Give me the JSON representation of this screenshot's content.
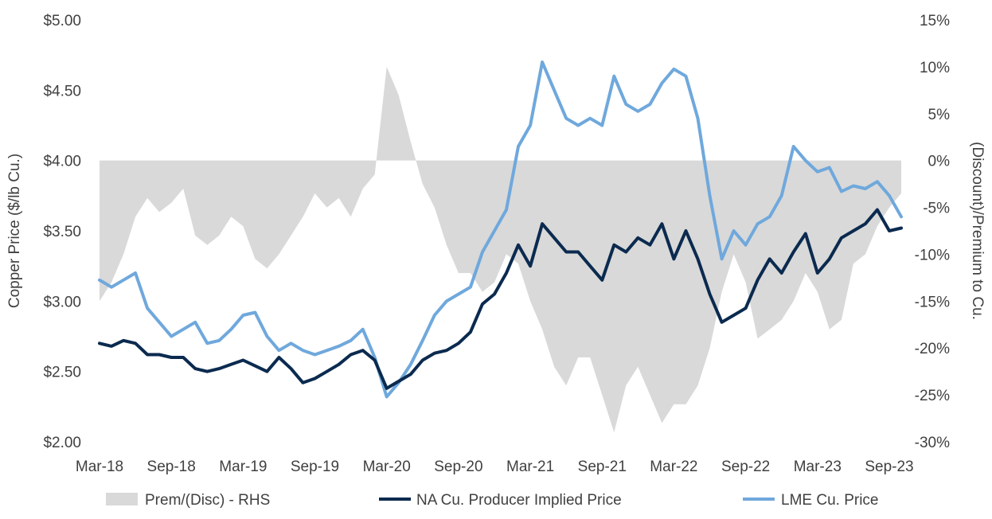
{
  "chart_data": {
    "type": "line",
    "title": "",
    "ylabel": "Copper Price ($/lb Cu.)",
    "y2label": "(Discount)/Premium to Cu.",
    "ylim": [
      2.0,
      5.0
    ],
    "y2lim": [
      -30,
      15
    ],
    "x_ticks": [
      "Mar-18",
      "Sep-18",
      "Mar-19",
      "Sep-19",
      "Mar-20",
      "Sep-20",
      "Mar-21",
      "Sep-21",
      "Mar-22",
      "Sep-22",
      "Mar-23",
      "Sep-23"
    ],
    "y_ticks": [
      "$2.00",
      "$2.50",
      "$3.00",
      "$3.50",
      "$4.00",
      "$4.50",
      "$5.00"
    ],
    "y2_ticks": [
      "-30%",
      "-25%",
      "-20%",
      "-15%",
      "-10%",
      "-5%",
      "0%",
      "5%",
      "10%",
      "15%"
    ],
    "legend_position": "bottom",
    "colors": {
      "premium": "#d9d9d9",
      "na": "#0b2a4f",
      "lme": "#6fa8dc"
    },
    "x": [
      "2018-03",
      "2018-04",
      "2018-05",
      "2018-06",
      "2018-07",
      "2018-08",
      "2018-09",
      "2018-10",
      "2018-11",
      "2018-12",
      "2019-01",
      "2019-02",
      "2019-03",
      "2019-04",
      "2019-05",
      "2019-06",
      "2019-07",
      "2019-08",
      "2019-09",
      "2019-10",
      "2019-11",
      "2019-12",
      "2020-01",
      "2020-02",
      "2020-03",
      "2020-04",
      "2020-05",
      "2020-06",
      "2020-07",
      "2020-08",
      "2020-09",
      "2020-10",
      "2020-11",
      "2020-12",
      "2021-01",
      "2021-02",
      "2021-03",
      "2021-04",
      "2021-05",
      "2021-06",
      "2021-07",
      "2021-08",
      "2021-09",
      "2021-10",
      "2021-11",
      "2021-12",
      "2022-01",
      "2022-02",
      "2022-03",
      "2022-04",
      "2022-05",
      "2022-06",
      "2022-07",
      "2022-08",
      "2022-09",
      "2022-10",
      "2022-11",
      "2022-12",
      "2023-01",
      "2023-02",
      "2023-03",
      "2023-04",
      "2023-05",
      "2023-06",
      "2023-07",
      "2023-08",
      "2023-09",
      "2023-10"
    ],
    "series": [
      {
        "name": "Prem/(Disc) - RHS",
        "axis": "right",
        "style": "area",
        "values": [
          -15.0,
          -13.0,
          -10.0,
          -6.0,
          -4.0,
          -5.5,
          -4.5,
          -3.0,
          -8.0,
          -9.0,
          -8.0,
          -6.0,
          -7.0,
          -10.5,
          -11.5,
          -10.0,
          -8.0,
          -6.0,
          -3.5,
          -5.0,
          -4.0,
          -6.0,
          -3.0,
          -1.5,
          10.0,
          7.0,
          2.0,
          -2.5,
          -5.0,
          -9.0,
          -12.0,
          -12.0,
          -14.0,
          -13.0,
          -10.0,
          -11.0,
          -15.0,
          -18.0,
          -22.0,
          -24.0,
          -21.0,
          -21.0,
          -25.0,
          -29.0,
          -24.0,
          -22.0,
          -25.0,
          -28.0,
          -26.0,
          -26.0,
          -24.0,
          -20.0,
          -14.0,
          -10.0,
          -13.0,
          -19.0,
          -18.0,
          -17.0,
          -15.0,
          -12.0,
          -14.0,
          -18.0,
          -17.0,
          -11.0,
          -10.0,
          -7.0,
          -5.0,
          -3.5
        ]
      },
      {
        "name": "NA Cu. Producer Implied Price",
        "axis": "left",
        "style": "line",
        "values": [
          2.7,
          2.68,
          2.72,
          2.7,
          2.62,
          2.62,
          2.6,
          2.6,
          2.52,
          2.5,
          2.52,
          2.55,
          2.58,
          2.54,
          2.5,
          2.6,
          2.52,
          2.42,
          2.45,
          2.5,
          2.55,
          2.62,
          2.65,
          2.58,
          2.38,
          2.43,
          2.48,
          2.58,
          2.63,
          2.65,
          2.7,
          2.78,
          2.98,
          3.05,
          3.2,
          3.4,
          3.25,
          3.55,
          3.45,
          3.35,
          3.35,
          3.25,
          3.15,
          3.4,
          3.35,
          3.45,
          3.4,
          3.55,
          3.3,
          3.5,
          3.3,
          3.05,
          2.85,
          2.9,
          2.95,
          3.15,
          3.3,
          3.2,
          3.35,
          3.48,
          3.2,
          3.3,
          3.45,
          3.5,
          3.55,
          3.65,
          3.5,
          3.52
        ]
      },
      {
        "name": "LME Cu. Price",
        "axis": "left",
        "style": "line",
        "values": [
          3.15,
          3.1,
          3.15,
          3.2,
          2.95,
          2.85,
          2.75,
          2.8,
          2.85,
          2.7,
          2.72,
          2.8,
          2.9,
          2.92,
          2.75,
          2.65,
          2.7,
          2.65,
          2.62,
          2.65,
          2.68,
          2.72,
          2.8,
          2.6,
          2.32,
          2.42,
          2.55,
          2.72,
          2.9,
          3.0,
          3.05,
          3.1,
          3.35,
          3.5,
          3.65,
          4.1,
          4.25,
          4.7,
          4.5,
          4.3,
          4.25,
          4.3,
          4.25,
          4.6,
          4.4,
          4.35,
          4.4,
          4.55,
          4.65,
          4.6,
          4.3,
          3.75,
          3.3,
          3.5,
          3.4,
          3.55,
          3.6,
          3.75,
          4.1,
          4.0,
          3.92,
          3.95,
          3.78,
          3.82,
          3.8,
          3.85,
          3.75,
          3.6
        ]
      }
    ]
  }
}
